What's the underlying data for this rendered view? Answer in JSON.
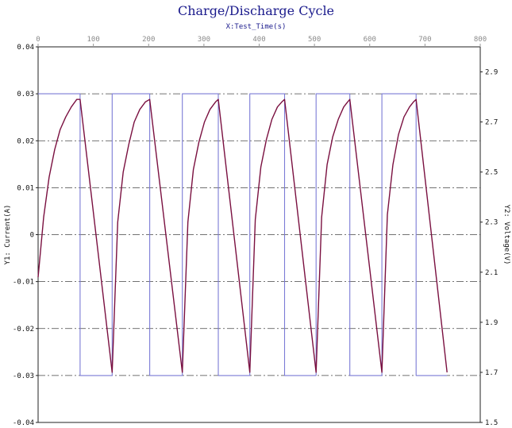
{
  "chart_data": {
    "type": "line",
    "title": "Charge/Discharge Cycle",
    "xlabel": "X:Test_Time(s)",
    "y1label": "Y1: Current(A)",
    "y2label": "Y2: Voltage(V)",
    "xlim": [
      0,
      800
    ],
    "ylim": [
      -0.04,
      0.04
    ],
    "y2lim": [
      1.5,
      3.0
    ],
    "xticks": [
      0,
      100,
      200,
      300,
      400,
      500,
      600,
      700,
      800
    ],
    "yticks": [
      -0.04,
      -0.03,
      -0.02,
      -0.01,
      0,
      0.01,
      0.02,
      0.03,
      0.04
    ],
    "xtick_labels": [
      "0",
      "100",
      "200",
      "300",
      "400",
      "500",
      "600",
      "700",
      "800"
    ],
    "ytick_labels": [
      "-0.04",
      "-0.03",
      "-0.02",
      "-0.01",
      "0",
      "0.01",
      "0.02",
      "0.03",
      "0.04"
    ],
    "y2tick_labels": [
      "1.5",
      "1.7",
      "1.9",
      "2.1",
      "2.3",
      "2.5",
      "2.7",
      "2.9"
    ],
    "y2ticks": [
      1.5,
      1.7,
      1.9,
      2.1,
      2.3,
      2.5,
      2.7,
      2.9
    ],
    "grid": true,
    "x_axis_position": "top",
    "series": [
      {
        "axis": "y1",
        "color": "#7b7bd6",
        "values": [
          [
            0,
            0.03
          ],
          [
            76,
            0.03
          ],
          [
            76,
            -0.03
          ],
          [
            134,
            -0.03
          ],
          [
            134,
            0.03
          ],
          [
            202,
            0.03
          ],
          [
            202,
            -0.03
          ],
          [
            261,
            -0.03
          ],
          [
            261,
            0.03
          ],
          [
            326,
            0.03
          ],
          [
            326,
            -0.03
          ],
          [
            383,
            -0.03
          ],
          [
            383,
            0.03
          ],
          [
            446,
            0.03
          ],
          [
            446,
            -0.03
          ],
          [
            503,
            -0.03
          ],
          [
            503,
            0.03
          ],
          [
            564,
            0.03
          ],
          [
            564,
            -0.03
          ],
          [
            622,
            -0.03
          ],
          [
            622,
            0.03
          ],
          [
            684,
            0.03
          ],
          [
            684,
            -0.03
          ],
          [
            740,
            -0.03
          ]
        ]
      },
      {
        "axis": "y2",
        "color": "#7a1040",
        "values": [
          [
            0,
            2.08
          ],
          [
            10,
            2.32
          ],
          [
            20,
            2.48
          ],
          [
            30,
            2.59
          ],
          [
            40,
            2.67
          ],
          [
            50,
            2.72
          ],
          [
            60,
            2.76
          ],
          [
            70,
            2.79
          ],
          [
            76,
            2.79
          ],
          [
            134,
            1.7
          ],
          [
            144,
            2.3
          ],
          [
            154,
            2.5
          ],
          [
            164,
            2.61
          ],
          [
            174,
            2.7
          ],
          [
            184,
            2.75
          ],
          [
            194,
            2.78
          ],
          [
            202,
            2.79
          ],
          [
            261,
            1.7
          ],
          [
            271,
            2.3
          ],
          [
            281,
            2.51
          ],
          [
            291,
            2.62
          ],
          [
            301,
            2.7
          ],
          [
            311,
            2.75
          ],
          [
            321,
            2.78
          ],
          [
            326,
            2.79
          ],
          [
            383,
            1.7
          ],
          [
            393,
            2.31
          ],
          [
            403,
            2.52
          ],
          [
            413,
            2.63
          ],
          [
            423,
            2.71
          ],
          [
            433,
            2.76
          ],
          [
            441,
            2.78
          ],
          [
            446,
            2.79
          ],
          [
            503,
            1.7
          ],
          [
            513,
            2.32
          ],
          [
            523,
            2.53
          ],
          [
            533,
            2.64
          ],
          [
            543,
            2.71
          ],
          [
            553,
            2.76
          ],
          [
            560,
            2.78
          ],
          [
            564,
            2.79
          ],
          [
            622,
            1.7
          ],
          [
            632,
            2.33
          ],
          [
            642,
            2.53
          ],
          [
            652,
            2.65
          ],
          [
            662,
            2.72
          ],
          [
            672,
            2.76
          ],
          [
            679,
            2.78
          ],
          [
            684,
            2.79
          ],
          [
            740,
            1.7
          ]
        ]
      }
    ]
  }
}
